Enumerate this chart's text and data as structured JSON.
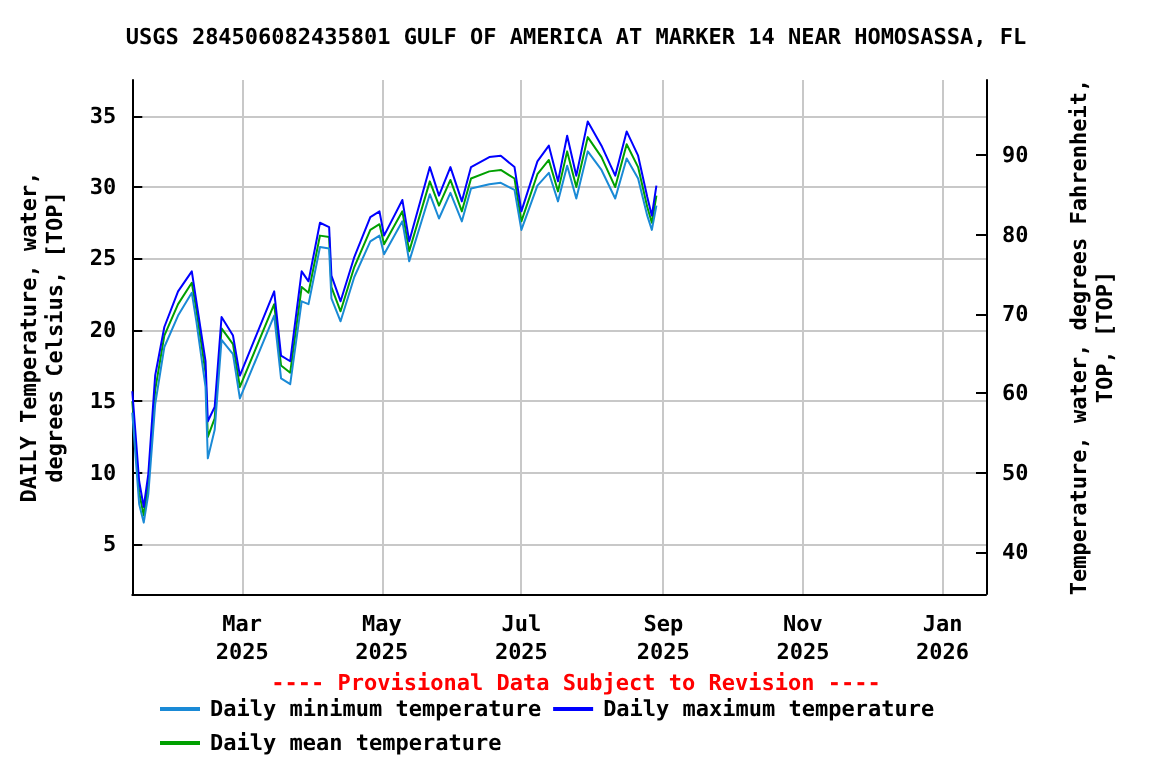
{
  "chart_data": {
    "type": "line",
    "title": "USGS 284506082435801 GULF OF AMERICA AT MARKER 14 NEAR HOMOSASSA, FL",
    "ylabel": "DAILY Temperature, water, degrees Celsius, [TOP]",
    "y2label": "Temperature, water, degrees Fahrenheit, TOP, [TOP]",
    "annotations": [
      "---- Provisional Data Subject to Revision ----"
    ],
    "x": [
      "2025-01-12",
      "2025-01-15",
      "2025-01-17",
      "2025-01-19",
      "2025-01-22",
      "2025-01-26",
      "2025-02-01",
      "2025-02-07",
      "2025-02-09",
      "2025-02-13",
      "2025-02-14",
      "2025-02-17",
      "2025-02-20",
      "2025-02-25",
      "2025-02-28",
      "2025-03-15",
      "2025-03-18",
      "2025-03-22",
      "2025-03-27",
      "2025-03-30",
      "2025-04-04",
      "2025-04-08",
      "2025-04-09",
      "2025-04-13",
      "2025-04-19",
      "2025-04-26",
      "2025-04-30",
      "2025-05-02",
      "2025-05-10",
      "2025-05-13",
      "2025-05-22",
      "2025-05-26",
      "2025-05-31",
      "2025-06-05",
      "2025-06-09",
      "2025-06-17",
      "2025-06-22",
      "2025-06-28",
      "2025-07-01",
      "2025-07-08",
      "2025-07-13",
      "2025-07-17",
      "2025-07-21",
      "2025-07-25",
      "2025-07-30",
      "2025-08-05",
      "2025-08-11",
      "2025-08-16",
      "2025-08-21",
      "2025-08-25",
      "2025-08-27",
      "2025-08-29"
    ],
    "series": [
      {
        "name": "Daily minimum temperature",
        "color": "#1a8ad6",
        "values": [
          14.2,
          7.8,
          6.5,
          8.5,
          14.8,
          18.8,
          21.0,
          22.6,
          20.6,
          16.0,
          11.0,
          13.0,
          19.3,
          18.3,
          15.2,
          21.0,
          16.6,
          16.2,
          22.0,
          21.8,
          25.8,
          25.7,
          22.2,
          20.6,
          23.7,
          26.2,
          26.6,
          25.3,
          27.6,
          24.8,
          29.5,
          27.8,
          29.6,
          27.6,
          29.9,
          30.2,
          30.3,
          29.8,
          27.0,
          30.1,
          31.0,
          29.0,
          31.5,
          29.2,
          32.5,
          31.2,
          29.2,
          32.0,
          30.6,
          28.0,
          27.0,
          28.7
        ]
      },
      {
        "name": "Daily maximum temperature",
        "color": "#0000ff",
        "values": [
          15.7,
          9.4,
          7.6,
          9.9,
          16.8,
          20.2,
          22.7,
          24.1,
          22.0,
          17.8,
          13.6,
          14.6,
          20.9,
          19.6,
          16.8,
          22.7,
          18.2,
          17.8,
          24.1,
          23.4,
          27.5,
          27.2,
          23.8,
          22.0,
          25.1,
          27.9,
          28.3,
          26.6,
          29.1,
          26.2,
          31.4,
          29.4,
          31.4,
          29.0,
          31.4,
          32.1,
          32.2,
          31.4,
          28.3,
          31.8,
          32.9,
          30.4,
          33.6,
          30.8,
          34.6,
          32.9,
          30.8,
          33.9,
          32.2,
          29.3,
          28.0,
          30.1
        ]
      },
      {
        "name": "Daily mean temperature",
        "color": "#00a000",
        "values": [
          15.0,
          8.6,
          7.0,
          9.2,
          15.8,
          19.6,
          21.8,
          23.3,
          21.4,
          17.0,
          12.5,
          13.8,
          20.1,
          19.0,
          16.0,
          21.8,
          17.5,
          17.0,
          23.0,
          22.6,
          26.6,
          26.5,
          23.0,
          21.3,
          24.4,
          27.0,
          27.4,
          26.0,
          28.3,
          25.5,
          30.4,
          28.7,
          30.5,
          28.3,
          30.6,
          31.1,
          31.2,
          30.6,
          27.6,
          30.9,
          31.9,
          29.7,
          32.5,
          30.0,
          33.5,
          32.1,
          30.0,
          33.0,
          31.4,
          28.6,
          27.5,
          29.4
        ]
      }
    ],
    "xlim": [
      "2025-01-12",
      "2026-01-20"
    ],
    "xticks": [
      {
        "value": "2025-03-01",
        "label": "Mar 2025"
      },
      {
        "value": "2025-05-01",
        "label": "May 2025"
      },
      {
        "value": "2025-07-01",
        "label": "Jul 2025"
      },
      {
        "value": "2025-09-01",
        "label": "Sep 2025"
      },
      {
        "value": "2025-11-01",
        "label": "Nov 2025"
      },
      {
        "value": "2026-01-01",
        "label": "Jan 2026"
      }
    ],
    "ylim": [
      1.5,
      37.5
    ],
    "yticks": [
      5,
      10,
      15,
      20,
      25,
      30,
      35
    ],
    "y2lim": [
      34.7,
      99.5
    ],
    "y2ticks": [
      40,
      50,
      60,
      70,
      80,
      90
    ],
    "grid": true,
    "legend": "bottom"
  }
}
